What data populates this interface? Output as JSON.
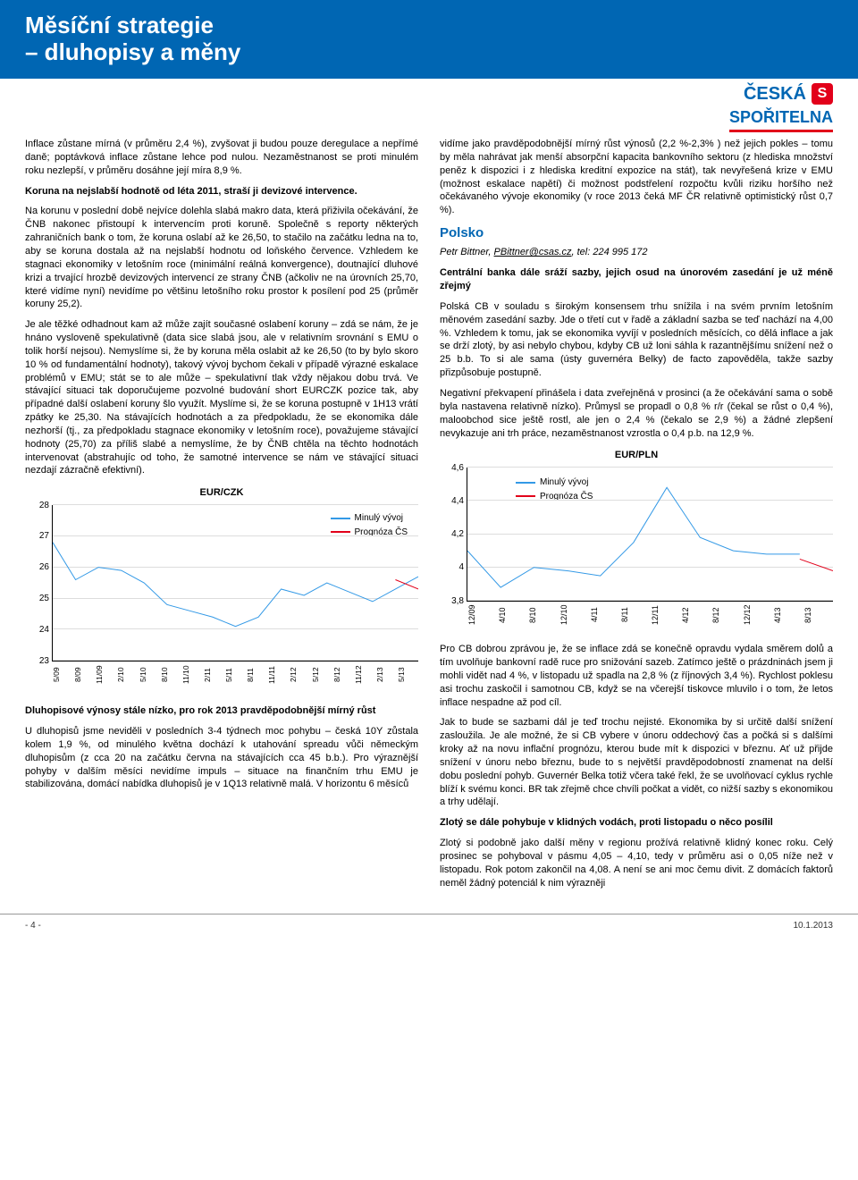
{
  "header": {
    "title_line1": "Měsíční strategie",
    "title_line2": "– dluhopisy a měny"
  },
  "logo": {
    "brand_top": "ČESKÁ",
    "brand_bottom": "SPOŘITELNA",
    "mark": "S"
  },
  "left": {
    "p1": "Inflace zůstane mírná (v průměru 2,4 %), zvyšovat ji budou pouze deregulace a nepřímé daně; poptávková inflace zůstane lehce pod nulou. Nezaměstnanost se proti minulém roku nezlepší, v průměru dosáhne její míra 8,9 %.",
    "p2": "Koruna na nejslabší hodnotě od léta 2011, straší ji devizové intervence.",
    "p3": "Na korunu v poslední době nejvíce dolehla slabá makro data, která přiživila očekávání, že ČNB nakonec přistoupí k intervencím proti koruně. Společně s reporty některých zahraničních bank o tom, že koruna oslabí až ke 26,50, to stačilo na začátku ledna na to, aby se koruna dostala až na nejslabší hodnotu od loňského července. Vzhledem ke stagnaci ekonomiky v letošním roce (minimální reálná konvergence), doutnající dluhové krizi a trvající hrozbě devizových intervencí ze strany ČNB (ačkoliv ne na úrovních 25,70, které vidíme nyní) nevidíme po většinu letošního roku prostor k posílení pod 25 (průměr koruny 25,2).",
    "p4": "Je ale těžké odhadnout kam až může zajít současné oslabení koruny – zdá se nám, že je hnáno vysloveně spekulativně (data sice slabá jsou, ale v relativním srovnání s EMU o tolik horší nejsou). Nemyslíme si, že by koruna měla oslabit až ke 26,50 (to by bylo skoro 10 % od fundamentální hodnoty), takový vývoj bychom čekali v případě výrazné eskalace problémů v EMU; stát se to ale může – spekulativní tlak vždy nějakou dobu trvá. Ve stávající situaci tak doporučujeme pozvolné budování short EURCZK pozice tak, aby případné další oslabení koruny šlo využít. Myslíme si, že se koruna postupně v 1H13 vrátí zpátky ke 25,30. Na stávajících hodnotách a za předpokladu, že se ekonomika dále nezhorší (tj., za předpokladu stagnace ekonomiky v letošním roce), považujeme stávající hodnoty (25,70) za příliš slabé a nemyslíme, že by ČNB chtěla na těchto hodnotách intervenovat (abstrahujíc od toho, že samotné intervence se nám ve stávající situaci nezdají zázračně efektivní).",
    "chart_heading": "EUR/CZK",
    "p5": "Dluhopisové výnosy stále nízko, pro rok 2013 pravděpodobnější mírný růst",
    "p6": "U dluhopisů jsme neviděli v posledních 3-4 týdnech moc pohybu – česká 10Y zůstala kolem 1,9 %, od minulého května dochází k utahování spreadu vůči německým dluhopisům (z cca 20 na začátku června na stávajících cca 45 b.b.). Pro výraznější pohyby v dalším měsíci nevidíme impuls – situace na finančním trhu EMU je stabilizována, domácí nabídka dluhopisů je v 1Q13 relativně malá. V horizontu 6 měsíců"
  },
  "right": {
    "p1": "vidíme jako pravděpodobnější mírný růst výnosů (2,2 %-2,3% ) než jejich pokles – tomu by měla nahrávat jak menší absorpční kapacita bankovního sektoru (z hlediska množství peněz k dispozici i z hlediska kreditní expozice na stát), tak nevyřešená krize v EMU (možnost eskalace napětí) či možnost podstřelení rozpočtu kvůli riziku horšího než očekávaného vývoje ekonomiky (v roce 2013 čeká MF ČR relativně optimistický růst 0,7 %).",
    "section": "Polsko",
    "author_name": "Petr Bittner, ",
    "author_email": "PBittner@csas.cz",
    "author_tel": ", tel: 224 995 172",
    "p2": "Centrální banka dále sráží sazby, jejich osud na únorovém zasedání je už méně zřejmý",
    "p3": "Polská CB v souladu s širokým konsensem trhu snížila i na svém prvním letošním měnovém zasedání sazby. Jde o třetí cut v řadě a základní sazba se teď nachází na 4,00 %. Vzhledem k tomu, jak se ekonomika vyvíjí v posledních měsících, co dělá inflace a jak se drží zlotý, by asi nebylo chybou, kdyby CB už loni sáhla k razantnějšímu snížení než o 25 b.b. To si ale sama (ústy guvernéra Belky) de facto zapověděla, takže sazby přizpůsobuje postupně.",
    "p4": "Negativní překvapení přinášela i data zveřejněná v prosinci (a že očekávání sama o sobě byla nastavena relativně nízko). Průmysl se propadl o 0,8 % r/r (čekal se růst o 0,4 %), maloobchod sice ještě rostl, ale jen o 2,4 % (čekalo se 2,9 %) a žádné zlepšení nevykazuje ani trh práce, nezaměstnanost vzrostla o 0,4 p.b. na 12,9 %.",
    "chart_heading": "EUR/PLN",
    "p5": "Pro CB dobrou zprávou je, že se inflace zdá se konečně opravdu vydala směrem dolů a tím uvolňuje bankovní radě ruce pro snižování sazeb. Zatímco ještě o prázdninách jsem ji mohli vidět nad 4 %, v listopadu už spadla na 2,8 % (z říjnových 3,4 %). Rychlost poklesu asi trochu zaskočil i samotnou CB, když se na včerejší tiskovce mluvilo i o tom, že letos inflace nespadne až pod cíl.",
    "p6": "Jak to bude se sazbami dál je teď trochu nejisté. Ekonomika by si určitě další snížení zasloužila. Je ale možné, že si CB vybere v únoru oddechový čas a počká si s dalšími kroky až na novu inflační prognózu, kterou bude mít k dispozici v březnu. Ať už přijde snížení v únoru nebo březnu, bude to s největší pravděpodobností znamenat na delší dobu poslední pohyb. Guvernér Belka totiž včera také řekl, že se uvolňovací cyklus rychle blíží k svému konci. BR tak zřejmě chce chvíli počkat a vidět, co nižší sazby s ekonomikou a trhy udělají.",
    "p7": "Zlotý se dále pohybuje v klidných vodách, proti listopadu o něco posílil",
    "p8": "Zlotý si podobně jako další měny v regionu prožívá relativně klidný konec roku. Celý prosinec se pohyboval v pásmu 4,05 – 4,10, tedy v průměru asi o 0,05 níže než v listopadu. Rok potom zakončil na 4,08. A není se ani moc čemu divit. Z domácích faktorů neměl žádný potenciál k nim výrazněji"
  },
  "chart_czk": {
    "title": "EUR/CZK",
    "legend_actual": "Minulý vývoj",
    "legend_forecast": "Prognóza ČS",
    "color_actual": "#3399e6",
    "color_forecast": "#e2001a",
    "y_ticks": [
      23,
      24,
      25,
      26,
      27,
      28
    ],
    "ylim": [
      23,
      28
    ],
    "x_labels": [
      "5/09",
      "8/09",
      "11/09",
      "2/10",
      "5/10",
      "8/10",
      "11/10",
      "2/11",
      "5/11",
      "8/11",
      "11/11",
      "2/12",
      "5/12",
      "8/12",
      "11/12",
      "2/13",
      "5/13"
    ],
    "actual_series": [
      26.8,
      25.6,
      26.0,
      25.9,
      25.5,
      24.8,
      24.6,
      24.4,
      24.1,
      24.4,
      25.3,
      25.1,
      25.5,
      25.2,
      24.9,
      25.3,
      25.7
    ],
    "forecast_series": [
      null,
      null,
      null,
      null,
      null,
      null,
      null,
      null,
      null,
      null,
      null,
      null,
      null,
      null,
      null,
      25.6,
      25.3
    ]
  },
  "chart_pln": {
    "title": "EUR/PLN",
    "legend_actual": "Minulý vývoj",
    "legend_forecast": "Prognóza ČS",
    "color_actual": "#3399e6",
    "color_forecast": "#e2001a",
    "y_ticks": [
      3.8,
      4.0,
      4.2,
      4.4,
      4.6
    ],
    "ylim": [
      3.8,
      4.6
    ],
    "x_labels": [
      "12/09",
      "4/10",
      "8/10",
      "12/10",
      "4/11",
      "8/11",
      "12/11",
      "4/12",
      "8/12",
      "12/12",
      "4/13",
      "8/13"
    ],
    "actual_series": [
      4.1,
      3.88,
      4.0,
      3.98,
      3.95,
      4.15,
      4.48,
      4.18,
      4.1,
      4.08,
      4.08,
      null
    ],
    "forecast_series": [
      null,
      null,
      null,
      null,
      null,
      null,
      null,
      null,
      null,
      null,
      4.05,
      3.98
    ]
  },
  "footer": {
    "page": "- 4 -",
    "date": "10.1.2013"
  }
}
